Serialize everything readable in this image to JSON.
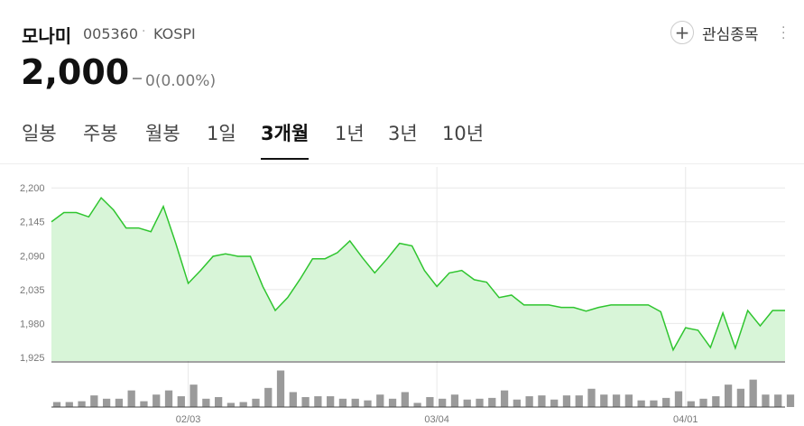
{
  "header": {
    "name": "모나미",
    "code": "005360",
    "market": "KOSPI",
    "watch": "관심종목",
    "price": "2,000",
    "change": "0(0.00%)"
  },
  "tabs": [
    "일봉",
    "주봉",
    "월봉",
    "1일",
    "3개월",
    "1년",
    "3년",
    "10년"
  ],
  "active_tab": 4,
  "chart_data": {
    "type": "line",
    "categories": [
      null,
      null,
      null,
      null,
      null,
      null,
      null,
      null,
      null,
      null,
      null,
      "02/03",
      null,
      null,
      null,
      null,
      null,
      null,
      null,
      null,
      null,
      null,
      null,
      null,
      null,
      null,
      null,
      null,
      null,
      null,
      null,
      "03/04",
      null,
      null,
      null,
      null,
      null,
      null,
      null,
      null,
      null,
      null,
      null,
      null,
      null,
      null,
      null,
      null,
      null,
      null,
      null,
      "04/01",
      null,
      null,
      null,
      null,
      null,
      null,
      null,
      null
    ],
    "series": [
      {
        "color": "#2fc52f",
        "fill": "#d8f5d8",
        "values": [
          2145,
          2160,
          2160,
          2153,
          2184,
          2164,
          2135,
          2135,
          2129,
          2170,
          2110,
          2045,
          2066,
          2089,
          2093,
          2089,
          2089,
          2040,
          2001,
          2022,
          2052,
          2085,
          2085,
          2095,
          2114,
          2087,
          2062,
          2085,
          2110,
          2106,
          2066,
          2040,
          2062,
          2066,
          2051,
          2047,
          2022,
          2026,
          2010,
          2010,
          2010,
          2006,
          2006,
          2000,
          2006,
          2010,
          2010,
          2010,
          2010,
          1999,
          1937,
          1973,
          1969,
          1941,
          1997,
          1940,
          2001,
          1976,
          2001,
          2001
        ]
      }
    ],
    "ylim": [
      1919,
      2234
    ],
    "yticks": [
      {
        "value": 2200,
        "label": "2,200"
      },
      {
        "value": 2145,
        "label": "2,145"
      },
      {
        "value": 2090,
        "label": "2,090"
      },
      {
        "value": 2035,
        "label": "2,035"
      },
      {
        "value": 1980,
        "label": "1,980"
      },
      {
        "value": 1925,
        "label": "1,925"
      }
    ],
    "grid": true,
    "volume": {
      "color": "#9a9a9a",
      "ylim": [
        0,
        50
      ],
      "values": [
        6,
        6,
        7,
        14,
        10,
        10,
        20,
        7,
        15,
        20,
        13,
        27,
        10,
        12,
        5,
        6,
        10,
        23,
        44,
        18,
        12,
        13,
        13,
        10,
        10,
        8,
        15,
        10,
        18,
        5,
        12,
        10,
        15,
        9,
        10,
        11,
        20,
        9,
        13,
        14,
        9,
        14,
        14,
        22,
        15,
        15,
        15,
        8,
        8,
        11,
        19,
        7,
        10,
        13,
        27,
        22,
        33,
        15,
        15,
        15
      ]
    }
  }
}
